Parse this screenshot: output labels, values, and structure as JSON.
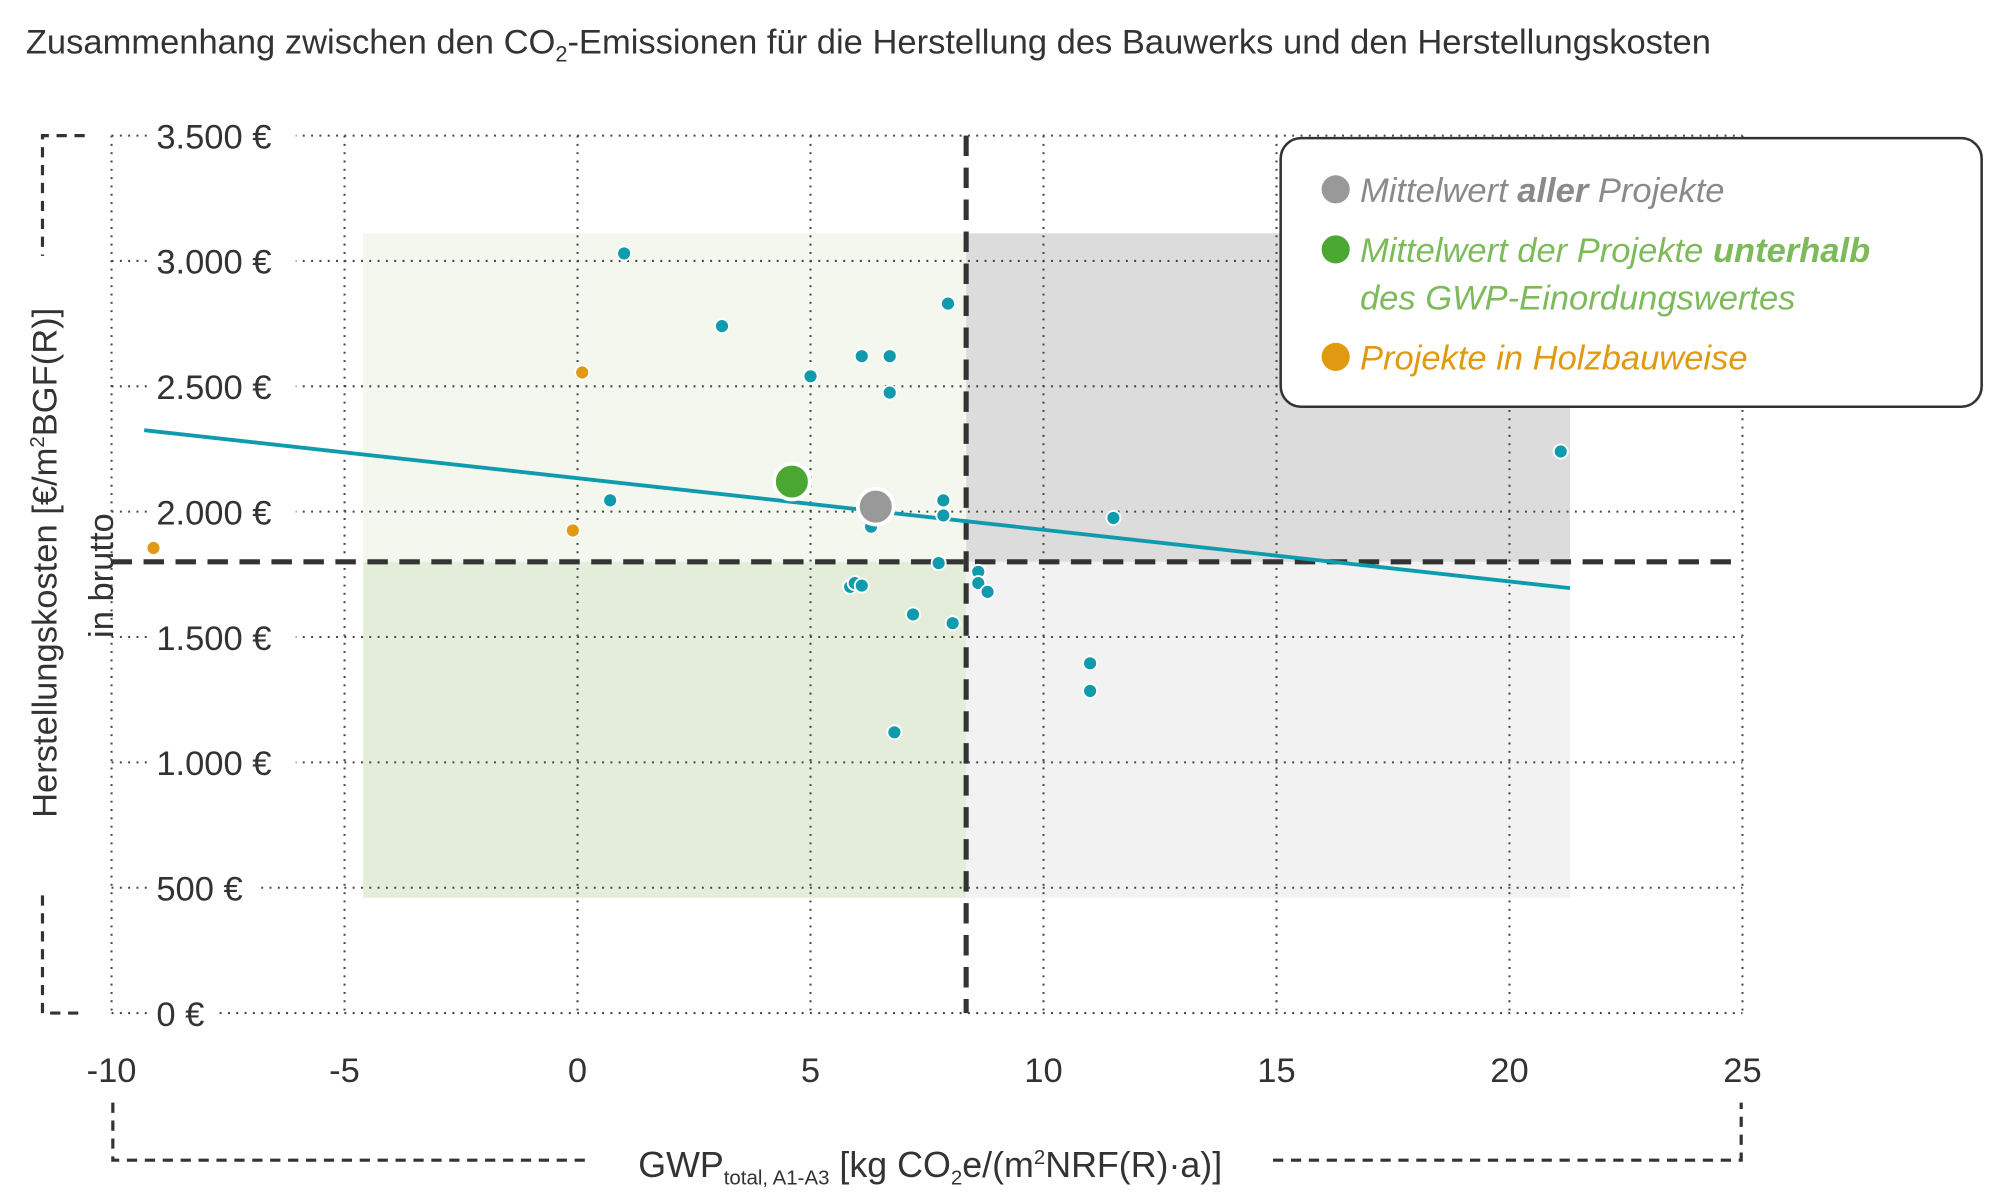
{
  "chart_data": {
    "type": "scatter",
    "title_parts": [
      "Zusammenhang zwischen den CO",
      "2",
      "-Emissionen für die Herstellung des Bauwerks und den Herstellungskosten"
    ],
    "xlabel_parts": [
      "GWP",
      "total, A1-A3",
      " [kg CO",
      "2",
      "e/(m",
      "2",
      "NRF(R)·a)]"
    ],
    "ylabel_parts": [
      "Herstellungskosten [€/m",
      "2",
      "BGF(R)]"
    ],
    "ylabel_sub": "in brutto",
    "xlim": [
      -10,
      25
    ],
    "ylim": [
      0,
      3500
    ],
    "x_ticks": [
      -10,
      -5,
      0,
      5,
      10,
      15,
      20,
      25
    ],
    "x_tick_labels": [
      "-10",
      "-5",
      "0",
      "5",
      "10",
      "15",
      "20",
      "25"
    ],
    "y_ticks": [
      0,
      500,
      1000,
      1500,
      2000,
      2500,
      3000,
      3500
    ],
    "y_tick_labels": [
      "0 €",
      "500 €",
      "1.000 €",
      "1.500 €",
      "2.000 €",
      "2.500 €",
      "3.000 €",
      "3.500 €"
    ],
    "grid": true,
    "thresholds": {
      "x": 8.34,
      "y": 1800
    },
    "regions": [
      {
        "x": [
          -4.6,
          8.34
        ],
        "y": [
          1800,
          3110
        ],
        "color": "#f3f7ee"
      },
      {
        "x": [
          -4.6,
          8.34
        ],
        "y": [
          460,
          1800
        ],
        "color": "#e3edd9"
      },
      {
        "x": [
          8.34,
          21.3
        ],
        "y": [
          1800,
          3110
        ],
        "color": "#dcdcdc"
      },
      {
        "x": [
          8.34,
          21.3
        ],
        "y": [
          460,
          1800
        ],
        "color": "#f2f2f2"
      }
    ],
    "series": [
      {
        "type": "points",
        "color": "#0f9aad",
        "points": [
          [
            1.0,
            3030
          ],
          [
            3.1,
            2740
          ],
          [
            7.95,
            2830
          ],
          [
            6.1,
            2620
          ],
          [
            6.7,
            2620
          ],
          [
            5.0,
            2540
          ],
          [
            6.7,
            2475
          ],
          [
            21.1,
            2240
          ],
          [
            0.7,
            2045
          ],
          [
            7.85,
            2045
          ],
          [
            7.85,
            1985
          ],
          [
            6.3,
            1940
          ],
          [
            11.5,
            1975
          ],
          [
            7.75,
            1795
          ],
          [
            8.6,
            1760
          ],
          [
            8.6,
            1715
          ],
          [
            8.8,
            1680
          ],
          [
            5.85,
            1700
          ],
          [
            5.95,
            1715
          ],
          [
            6.1,
            1705
          ],
          [
            7.2,
            1590
          ],
          [
            8.05,
            1555
          ],
          [
            11.0,
            1395
          ],
          [
            11.0,
            1285
          ],
          [
            6.8,
            1120
          ]
        ]
      },
      {
        "type": "points",
        "name": "Projekte in Holzbauweise",
        "color": "#e09a12",
        "points": [
          [
            -9.1,
            1855
          ],
          [
            -0.1,
            1925
          ],
          [
            0.1,
            2555
          ]
        ]
      },
      {
        "type": "mean",
        "name": "Mittelwert aller Projekte",
        "color": "#999999",
        "points": [
          [
            6.4,
            2020
          ]
        ]
      },
      {
        "type": "mean",
        "name": "Mittelwert der Projekte unterhalb des GWP-Einordungswertes",
        "color": "#4aa832",
        "points": [
          [
            4.6,
            2120
          ]
        ]
      }
    ],
    "trendline": {
      "color": "#0f9aad",
      "from": [
        -9.3,
        2325
      ],
      "to": [
        21.3,
        1695
      ]
    },
    "legend": {
      "placement": "top-right",
      "items": [
        {
          "color": "#999999",
          "text_color": "#8a8a8a",
          "parts": [
            "Mittelwert ",
            "aller",
            " Projekte"
          ]
        },
        {
          "color": "#4aa832",
          "text_color": "#7dbb5a",
          "parts": [
            "Mittelwert der Projekte ",
            "unterhalb"
          ],
          "line2": "des GWP-Einordungswertes"
        },
        {
          "color": "#e09a12",
          "text_color": "#e09a12",
          "parts": [
            "Projekte in Holzbauweise"
          ]
        }
      ]
    }
  }
}
